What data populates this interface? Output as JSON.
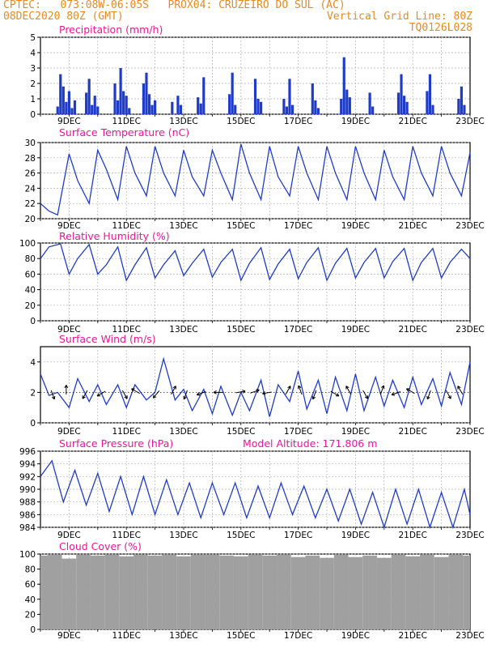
{
  "header": {
    "line1": "CPTEC:   073:08W-06:05S   PROX04: CRUZEIRO DO SUL (AC)",
    "line2": "08DEC2020 80Z (GMT)",
    "grid_note": "Vertical Grid Line: 80Z",
    "code": "TQ0126L028"
  },
  "colors": {
    "header": "#e88a1e",
    "title": "#e8179a",
    "series": "#1f3cc8",
    "cloud": "#a0a0a0",
    "arrow": "#000000"
  },
  "x_tick_labels": [
    "9DEC",
    "11DEC",
    "13DEC",
    "15DEC",
    "17DEC",
    "19DEC",
    "21DEC",
    "23DEC"
  ],
  "chart_data": [
    {
      "type": "bar",
      "title": "Precipitation (mm/h)",
      "ylim": [
        0,
        5
      ],
      "yticks": [
        0,
        1,
        2,
        3,
        4,
        5
      ],
      "x_range_days": [
        8,
        23
      ],
      "x": [
        8.6,
        8.7,
        8.8,
        8.9,
        9.0,
        9.1,
        9.2,
        9.6,
        9.7,
        9.8,
        9.9,
        10.0,
        10.6,
        10.7,
        10.8,
        10.9,
        11.0,
        11.1,
        11.6,
        11.7,
        11.8,
        11.9,
        12.0,
        12.6,
        12.8,
        12.9,
        13.5,
        13.6,
        13.7,
        14.6,
        14.7,
        14.8,
        15.5,
        15.6,
        15.7,
        16.5,
        16.6,
        16.7,
        16.8,
        17.5,
        17.6,
        17.7,
        18.5,
        18.6,
        18.7,
        18.8,
        19.5,
        19.6,
        20.5,
        20.6,
        20.7,
        20.8,
        21.5,
        21.6,
        21.7,
        22.6,
        22.7,
        22.8
      ],
      "values": [
        0.5,
        2.6,
        1.8,
        0.8,
        1.5,
        0.4,
        0.9,
        1.4,
        2.3,
        0.6,
        1.2,
        0.5,
        2.0,
        0.9,
        3.0,
        1.5,
        1.2,
        0.4,
        2.0,
        2.7,
        1.3,
        0.6,
        0.9,
        0.8,
        1.2,
        0.6,
        1.1,
        0.7,
        2.4,
        1.3,
        2.7,
        0.6,
        2.3,
        1.0,
        0.8,
        1.0,
        0.5,
        2.3,
        0.6,
        2.0,
        0.9,
        0.4,
        1.0,
        3.7,
        1.6,
        1.1,
        1.4,
        0.5,
        1.4,
        2.6,
        1.2,
        0.8,
        1.5,
        2.6,
        0.6,
        1.0,
        1.8,
        0.6
      ]
    },
    {
      "type": "line",
      "title": "Surface Temperature (nC)",
      "ylim": [
        20,
        30
      ],
      "yticks": [
        20,
        22,
        24,
        26,
        28,
        30
      ],
      "x_range_days": [
        8,
        23
      ],
      "x": [
        8.0,
        8.3,
        8.6,
        9.0,
        9.3,
        9.7,
        10.0,
        10.3,
        10.7,
        11.0,
        11.3,
        11.7,
        12.0,
        12.3,
        12.7,
        13.0,
        13.3,
        13.7,
        14.0,
        14.3,
        14.7,
        15.0,
        15.3,
        15.7,
        16.0,
        16.3,
        16.7,
        17.0,
        17.3,
        17.7,
        18.0,
        18.3,
        18.7,
        19.0,
        19.3,
        19.7,
        20.0,
        20.3,
        20.7,
        21.0,
        21.3,
        21.7,
        22.0,
        22.3,
        22.7,
        23.0
      ],
      "values": [
        22.0,
        21.0,
        20.5,
        28.5,
        25.0,
        22.0,
        29.0,
        26.5,
        22.5,
        29.5,
        26.0,
        23.0,
        29.5,
        26.0,
        23.0,
        29.0,
        25.5,
        23.0,
        29.0,
        26.0,
        22.5,
        29.8,
        26.0,
        22.5,
        29.5,
        25.5,
        23.0,
        29.5,
        26.0,
        22.5,
        29.5,
        26.0,
        22.5,
        29.5,
        26.0,
        22.5,
        29.0,
        25.5,
        22.5,
        29.5,
        26.0,
        23.0,
        29.5,
        26.0,
        23.0,
        28.7
      ]
    },
    {
      "type": "line",
      "title": "Relative Humidity (%)",
      "ylim": [
        0,
        100
      ],
      "yticks": [
        0,
        20,
        40,
        60,
        80,
        100
      ],
      "x_range_days": [
        8,
        23
      ],
      "x": [
        8.0,
        8.3,
        8.7,
        9.0,
        9.3,
        9.7,
        10.0,
        10.3,
        10.7,
        11.0,
        11.3,
        11.7,
        12.0,
        12.3,
        12.7,
        13.0,
        13.3,
        13.7,
        14.0,
        14.3,
        14.7,
        15.0,
        15.3,
        15.7,
        16.0,
        16.3,
        16.7,
        17.0,
        17.3,
        17.7,
        18.0,
        18.3,
        18.7,
        19.0,
        19.3,
        19.7,
        20.0,
        20.3,
        20.7,
        21.0,
        21.3,
        21.7,
        22.0,
        22.3,
        22.7,
        23.0
      ],
      "values": [
        80,
        95,
        99,
        60,
        80,
        98,
        60,
        72,
        95,
        52,
        72,
        94,
        55,
        72,
        90,
        58,
        74,
        92,
        56,
        75,
        92,
        52,
        74,
        94,
        53,
        73,
        92,
        54,
        75,
        94,
        52,
        74,
        93,
        55,
        75,
        93,
        55,
        76,
        93,
        52,
        75,
        93,
        55,
        75,
        92,
        80
      ]
    },
    {
      "type": "line",
      "title": "Surface Wind (m/s)",
      "ylim": [
        0,
        5
      ],
      "yticks": [
        0,
        2,
        4
      ],
      "x_range_days": [
        8,
        23
      ],
      "x": [
        8.0,
        8.3,
        8.6,
        9.0,
        9.3,
        9.7,
        10.0,
        10.3,
        10.7,
        11.0,
        11.3,
        11.7,
        12.0,
        12.3,
        12.7,
        13.0,
        13.3,
        13.7,
        14.0,
        14.3,
        14.7,
        15.0,
        15.3,
        15.7,
        16.0,
        16.3,
        16.7,
        17.0,
        17.3,
        17.7,
        18.0,
        18.3,
        18.7,
        19.0,
        19.3,
        19.7,
        20.0,
        20.3,
        20.7,
        21.0,
        21.3,
        21.7,
        22.0,
        22.3,
        22.7,
        23.0
      ],
      "values": [
        3.2,
        1.8,
        2.0,
        1.0,
        2.9,
        1.4,
        2.5,
        1.2,
        2.5,
        1.0,
        2.5,
        1.5,
        2.0,
        4.2,
        1.5,
        2.2,
        0.8,
        2.2,
        0.6,
        2.4,
        0.5,
        2.0,
        0.8,
        2.8,
        0.4,
        2.5,
        1.4,
        3.4,
        0.9,
        2.8,
        0.6,
        3.0,
        0.8,
        3.2,
        0.8,
        3.0,
        1.1,
        2.8,
        1.0,
        3.0,
        1.2,
        2.9,
        1.1,
        3.3,
        1.2,
        4.0
      ],
      "arrow_x": [
        8.4,
        8.9,
        9.6,
        10.2,
        10.9,
        11.4,
        12.1,
        12.6,
        13.1,
        13.7,
        14.3,
        14.9,
        15.4,
        16.0,
        16.6,
        17.1,
        17.6,
        18.2,
        18.8,
        19.3,
        19.9,
        20.5,
        21.0,
        21.6,
        22.2,
        22.7
      ],
      "arrow_dir_deg": [
        290,
        90,
        240,
        210,
        300,
        150,
        230,
        60,
        250,
        200,
        180,
        10,
        20,
        190,
        60,
        110,
        250,
        330,
        120,
        300,
        70,
        200,
        150,
        250,
        300,
        120
      ]
    },
    {
      "type": "line",
      "title": "Surface Pressure (hPa)",
      "annotation": "Model Altitude: 171.806 m",
      "ylim": [
        984,
        996
      ],
      "yticks": [
        984,
        986,
        988,
        990,
        992,
        994,
        996
      ],
      "x_range_days": [
        8,
        23
      ],
      "x": [
        8.0,
        8.4,
        8.8,
        9.2,
        9.6,
        10.0,
        10.4,
        10.8,
        11.2,
        11.6,
        12.0,
        12.4,
        12.8,
        13.2,
        13.6,
        14.0,
        14.4,
        14.8,
        15.2,
        15.6,
        16.0,
        16.4,
        16.8,
        17.2,
        17.6,
        18.0,
        18.4,
        18.8,
        19.2,
        19.6,
        20.0,
        20.4,
        20.8,
        21.2,
        21.6,
        22.0,
        22.4,
        22.8,
        23.0
      ],
      "values": [
        992,
        994.5,
        988,
        993,
        987.5,
        992.5,
        986.5,
        992,
        986,
        992,
        986,
        991.5,
        986,
        991,
        985.5,
        991,
        986,
        991,
        985.5,
        990.5,
        985.5,
        991,
        986,
        990.5,
        985.5,
        990,
        985,
        990,
        984.5,
        989.5,
        984,
        990,
        984.5,
        990,
        984,
        989.5,
        984,
        990,
        986
      ]
    },
    {
      "type": "bar",
      "title": "Cloud Cover (%)",
      "ylim": [
        0,
        100
      ],
      "yticks": [
        0,
        20,
        40,
        60,
        80,
        100
      ],
      "x_range_days": [
        8,
        23
      ],
      "x": [
        8.0,
        8.5,
        9.0,
        9.5,
        10.0,
        10.5,
        11.0,
        11.5,
        12.0,
        12.5,
        13.0,
        13.5,
        14.0,
        14.5,
        15.0,
        15.5,
        16.0,
        16.5,
        17.0,
        17.5,
        18.0,
        18.5,
        19.0,
        19.5,
        20.0,
        20.5,
        21.0,
        21.5,
        22.0,
        22.5,
        23.0
      ],
      "values": [
        98,
        99,
        94,
        99,
        98,
        99,
        97,
        99,
        98,
        99,
        97,
        99,
        99,
        98,
        97,
        99,
        98,
        99,
        96,
        98,
        95,
        99,
        96,
        98,
        95,
        99,
        97,
        99,
        96,
        99,
        98
      ]
    }
  ]
}
